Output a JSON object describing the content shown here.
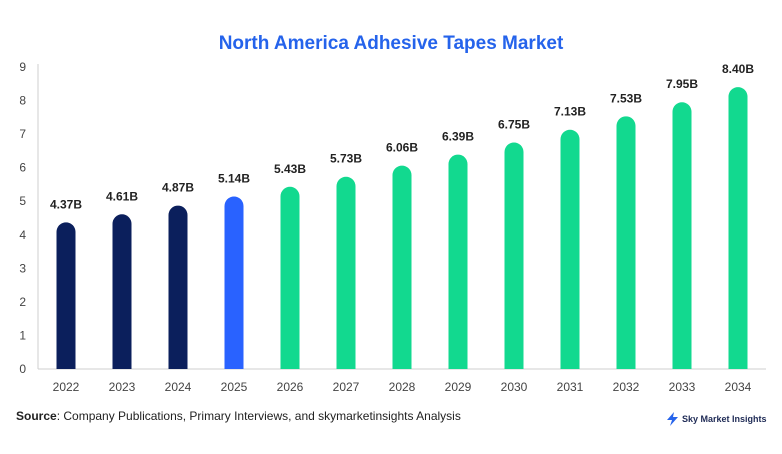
{
  "chart_data": {
    "type": "bar",
    "title": "North America Adhesive Tapes Market",
    "categories": [
      "2022",
      "2023",
      "2024",
      "2025",
      "2026",
      "2027",
      "2028",
      "2029",
      "2030",
      "2031",
      "2032",
      "2033",
      "2034"
    ],
    "values": [
      4.37,
      4.61,
      4.87,
      5.14,
      5.43,
      5.73,
      6.06,
      6.39,
      6.75,
      7.13,
      7.53,
      7.95,
      8.4
    ],
    "data_labels": [
      "4.37B",
      "4.61B",
      "4.87B",
      "5.14B",
      "5.43B",
      "5.73B",
      "6.06B",
      "6.39B",
      "6.75B",
      "7.13B",
      "7.53B",
      "7.95B",
      "8.40B"
    ],
    "colors": [
      "#0b1f5c",
      "#0b1f5c",
      "#0b1f5c",
      "#2962ff",
      "#12d98f",
      "#12d98f",
      "#12d98f",
      "#12d98f",
      "#12d98f",
      "#12d98f",
      "#12d98f",
      "#12d98f",
      "#12d98f"
    ],
    "yticks": [
      0,
      1,
      2,
      3,
      4,
      5,
      6,
      7,
      8,
      9
    ],
    "ylim": [
      0,
      9
    ],
    "grid": false,
    "xlabel": "",
    "ylabel": ""
  },
  "source": {
    "label": "Source",
    "text": ": Company Publications, Primary Interviews, and skymarketinsights Analysis"
  },
  "logo": {
    "text": "Sky Market Insights",
    "icon": "lightning-bolt-icon",
    "color": "#2563eb"
  }
}
